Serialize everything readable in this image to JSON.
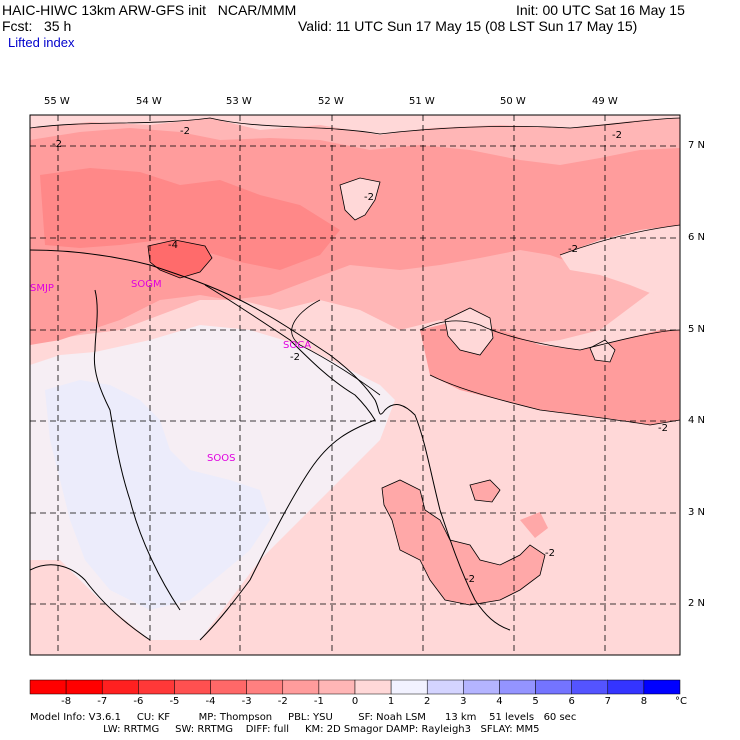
{
  "header": {
    "model_line": "HAIC-HIWC 13km ARW-GFS init   NCAR/MMM",
    "forecast_line": "Fcst:   35 h",
    "init_line": "Init: 00 UTC Sat 16 May 15",
    "valid_line": "Valid: 11 UTC Sun 17 May 15 (08 LST Sun 17 May 15)",
    "field_name": "Lifted index"
  },
  "map": {
    "longitude_labels": [
      "55 W",
      "54 W",
      "53 W",
      "52 W",
      "51 W",
      "50 W",
      "49 W"
    ],
    "latitude_labels": [
      "7 N",
      "6 N",
      "5 N",
      "4 N",
      "3 N",
      "2 N"
    ],
    "stations": [
      {
        "id": "SMJP"
      },
      {
        "id": "SOGM"
      },
      {
        "id": "SOCA"
      },
      {
        "id": "SOOS"
      }
    ],
    "contour_labels": [
      "-2",
      "-2",
      "-2",
      "-4",
      "-2",
      "-2",
      "-2",
      "-2",
      "-2",
      "-2"
    ]
  },
  "colorbar": {
    "labels": [
      "-8",
      "-7",
      "-6",
      "-5",
      "-4",
      "-3",
      "-2",
      "-1",
      "0",
      "1",
      "2",
      "3",
      "4",
      "5",
      "6",
      "7",
      "8"
    ],
    "unit": "°C",
    "colors": [
      "#ff0000",
      "#ff2020",
      "#ff3838",
      "#ff5050",
      "#ff6868",
      "#ff8080",
      "#ff9c9c",
      "#ffb6b6",
      "#ffd8d8",
      "#f2f2ff",
      "#d4d4ff",
      "#b4b4ff",
      "#9494ff",
      "#7474ff",
      "#5454ff",
      "#3434ff",
      "#0000ff"
    ]
  },
  "model_info": {
    "line1": "Model Info: V3.6.1     CU: KF         MP: Thompson     PBL: YSU        SF: Noah LSM      13 km    51 levels   60 sec",
    "line2": "                       LW: RRTMG     SW: RRTMG    DIFF: full     KM: 2D Smagor DAMP: Rayleigh3   SFLAY: MM5"
  }
}
